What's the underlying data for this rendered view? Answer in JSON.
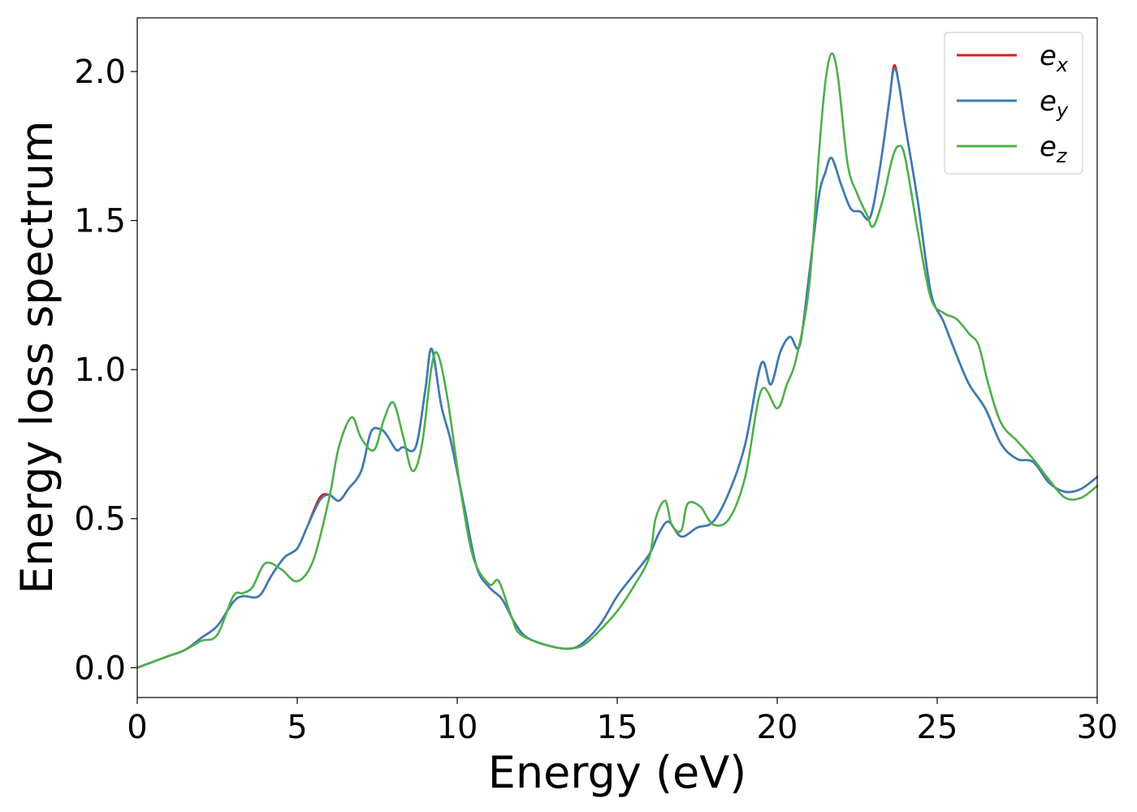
{
  "chart_data": {
    "type": "line",
    "xlabel": "Energy (eV)",
    "ylabel": "Energy loss spectrum",
    "xlim": [
      0,
      30
    ],
    "ylim": [
      -0.1,
      2.18
    ],
    "xticks": [
      0,
      5,
      10,
      15,
      20,
      25,
      30
    ],
    "xtick_labels": [
      "0",
      "5",
      "10",
      "15",
      "20",
      "25",
      "30"
    ],
    "yticks": [
      0.0,
      0.5,
      1.0,
      1.5,
      2.0
    ],
    "ytick_labels": [
      "0.0",
      "0.5",
      "1.0",
      "1.5",
      "2.0"
    ],
    "grid": false,
    "legend_position": "top-right",
    "series": [
      {
        "name": "e_x",
        "label_base": "e",
        "label_sub": "x",
        "color": "#e41a1c",
        "x": [
          0,
          0.5,
          1,
          1.5,
          2,
          2.5,
          3,
          3.3,
          3.8,
          4.2,
          4.6,
          5,
          5.3,
          5.7,
          6,
          6.3,
          6.6,
          7,
          7.3,
          7.6,
          7.8,
          8.1,
          8.3,
          8.7,
          9,
          9.2,
          9.5,
          9.8,
          10.2,
          10.6,
          11,
          11.4,
          11.8,
          12.2,
          13,
          13.6,
          14,
          14.5,
          15,
          15.5,
          16,
          16.3,
          16.6,
          17,
          17.5,
          18,
          18.5,
          19,
          19.5,
          19.8,
          20.1,
          20.4,
          20.7,
          21,
          21.3,
          21.5,
          21.7,
          22,
          22.3,
          22.6,
          22.9,
          23.2,
          23.5,
          23.65,
          23.8,
          24,
          24.4,
          24.8,
          25.2,
          25.6,
          26,
          26.5,
          27,
          27.5,
          28,
          28.5,
          29,
          29.5,
          30
        ],
        "values": [
          0,
          0.02,
          0.04,
          0.06,
          0.1,
          0.14,
          0.22,
          0.24,
          0.24,
          0.31,
          0.37,
          0.4,
          0.47,
          0.57,
          0.58,
          0.56,
          0.6,
          0.66,
          0.79,
          0.8,
          0.78,
          0.73,
          0.74,
          0.74,
          0.93,
          1.07,
          0.88,
          0.76,
          0.55,
          0.34,
          0.27,
          0.23,
          0.15,
          0.1,
          0.07,
          0.065,
          0.09,
          0.15,
          0.24,
          0.31,
          0.38,
          0.45,
          0.49,
          0.44,
          0.47,
          0.49,
          0.59,
          0.75,
          1.02,
          0.95,
          1.06,
          1.11,
          1.08,
          1.32,
          1.58,
          1.66,
          1.71,
          1.62,
          1.54,
          1.53,
          1.51,
          1.67,
          1.9,
          2.02,
          1.96,
          1.82,
          1.56,
          1.26,
          1.16,
          1.05,
          0.95,
          0.87,
          0.75,
          0.7,
          0.69,
          0.62,
          0.59,
          0.6,
          0.64
        ]
      },
      {
        "name": "e_y",
        "label_base": "e",
        "label_sub": "y",
        "color": "#377eb8",
        "x": [
          0,
          0.5,
          1,
          1.5,
          2,
          2.5,
          3,
          3.3,
          3.8,
          4.2,
          4.6,
          5,
          5.3,
          5.7,
          6,
          6.3,
          6.6,
          7,
          7.3,
          7.6,
          7.8,
          8.1,
          8.3,
          8.7,
          9,
          9.2,
          9.5,
          9.8,
          10.2,
          10.6,
          11,
          11.4,
          11.8,
          12.2,
          13,
          13.6,
          14,
          14.5,
          15,
          15.5,
          16,
          16.3,
          16.6,
          17,
          17.5,
          18,
          18.5,
          19,
          19.5,
          19.8,
          20.1,
          20.4,
          20.7,
          21,
          21.3,
          21.5,
          21.7,
          22,
          22.3,
          22.6,
          22.9,
          23.2,
          23.5,
          23.65,
          23.8,
          24,
          24.4,
          24.8,
          25.2,
          25.6,
          26,
          26.5,
          27,
          27.5,
          28,
          28.5,
          29,
          29.5,
          30
        ],
        "values": [
          0,
          0.02,
          0.04,
          0.06,
          0.1,
          0.14,
          0.22,
          0.24,
          0.24,
          0.31,
          0.37,
          0.4,
          0.47,
          0.56,
          0.58,
          0.56,
          0.6,
          0.66,
          0.79,
          0.8,
          0.78,
          0.73,
          0.74,
          0.74,
          0.93,
          1.07,
          0.88,
          0.76,
          0.55,
          0.34,
          0.27,
          0.23,
          0.15,
          0.1,
          0.07,
          0.065,
          0.09,
          0.15,
          0.24,
          0.31,
          0.38,
          0.45,
          0.49,
          0.44,
          0.47,
          0.49,
          0.59,
          0.75,
          1.02,
          0.95,
          1.06,
          1.11,
          1.08,
          1.32,
          1.58,
          1.66,
          1.71,
          1.62,
          1.54,
          1.53,
          1.51,
          1.67,
          1.9,
          2.01,
          1.96,
          1.82,
          1.56,
          1.26,
          1.16,
          1.05,
          0.95,
          0.87,
          0.75,
          0.7,
          0.69,
          0.62,
          0.59,
          0.6,
          0.64
        ]
      },
      {
        "name": "e_z",
        "label_base": "e",
        "label_sub": "z",
        "color": "#4daf4a",
        "x": [
          0,
          0.5,
          1,
          1.5,
          2,
          2.5,
          3,
          3.3,
          3.6,
          4,
          4.5,
          5,
          5.5,
          6,
          6.3,
          6.7,
          7,
          7.4,
          7.7,
          8,
          8.3,
          8.6,
          8.9,
          9.2,
          9.4,
          9.7,
          10.1,
          10.5,
          11,
          11.3,
          11.7,
          12,
          13,
          13.6,
          14,
          14.5,
          15,
          15.5,
          16,
          16.2,
          16.5,
          16.7,
          17,
          17.2,
          17.6,
          18,
          18.5,
          19,
          19.5,
          20,
          20.3,
          20.6,
          21,
          21.3,
          21.5,
          21.7,
          21.9,
          22.2,
          22.5,
          22.8,
          23,
          23.3,
          23.6,
          23.8,
          24,
          24.4,
          24.8,
          25.2,
          25.6,
          26,
          26.3,
          26.6,
          27,
          27.5,
          28,
          28.5,
          29,
          29.5,
          30
        ],
        "values": [
          0,
          0.02,
          0.04,
          0.06,
          0.09,
          0.11,
          0.24,
          0.25,
          0.27,
          0.35,
          0.33,
          0.29,
          0.36,
          0.57,
          0.74,
          0.84,
          0.77,
          0.73,
          0.83,
          0.89,
          0.78,
          0.66,
          0.75,
          1.01,
          1.05,
          0.9,
          0.6,
          0.37,
          0.28,
          0.29,
          0.17,
          0.11,
          0.07,
          0.065,
          0.08,
          0.13,
          0.19,
          0.27,
          0.37,
          0.5,
          0.56,
          0.48,
          0.46,
          0.55,
          0.54,
          0.48,
          0.5,
          0.64,
          0.93,
          0.87,
          0.95,
          1.04,
          1.28,
          1.72,
          1.96,
          2.06,
          1.98,
          1.69,
          1.59,
          1.52,
          1.48,
          1.57,
          1.71,
          1.75,
          1.71,
          1.46,
          1.24,
          1.19,
          1.17,
          1.12,
          1.08,
          0.95,
          0.82,
          0.76,
          0.7,
          0.63,
          0.57,
          0.57,
          0.61
        ]
      }
    ]
  }
}
